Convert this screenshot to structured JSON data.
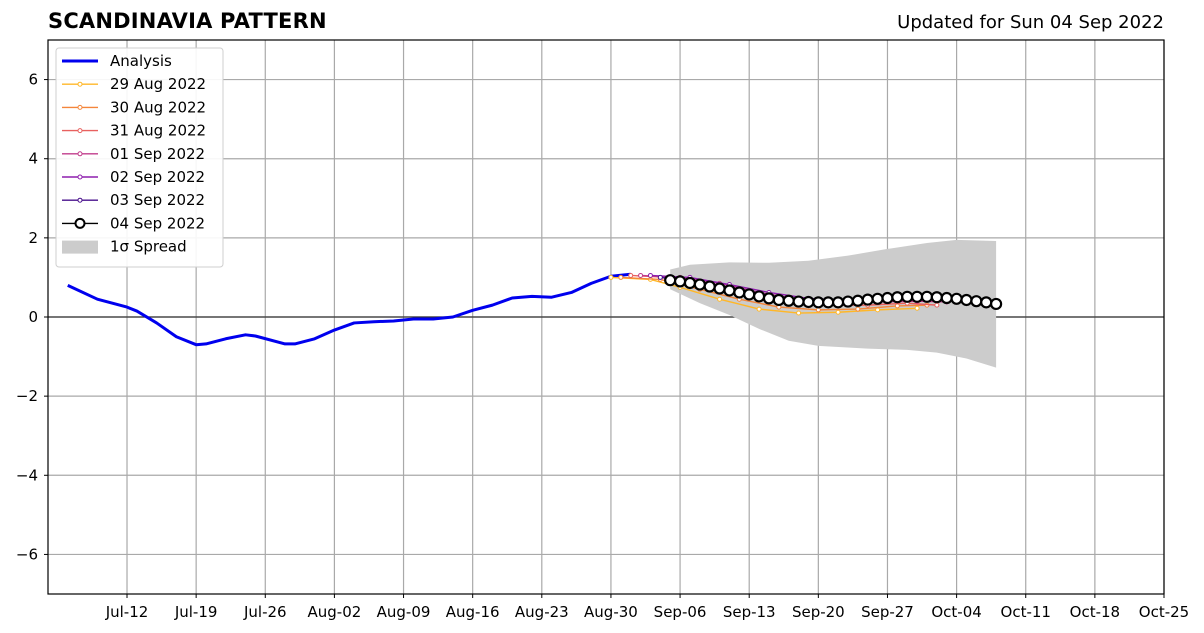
{
  "chart_data": {
    "type": "line",
    "title": "SCANDINAVIA PATTERN",
    "subtitle": "Updated for Sun 04 Sep 2022",
    "xlabel": "",
    "ylabel": "",
    "xlim": [
      "2022-07-04",
      "2022-10-25"
    ],
    "ylim": [
      -7,
      7
    ],
    "grid": true,
    "legend_position": "top-left",
    "x_ticks": [
      "2022-07-12",
      "2022-07-19",
      "2022-07-26",
      "2022-08-02",
      "2022-08-09",
      "2022-08-16",
      "2022-08-23",
      "2022-08-30",
      "2022-09-06",
      "2022-09-13",
      "2022-09-20",
      "2022-09-27",
      "2022-10-04",
      "2022-10-11",
      "2022-10-18",
      "2022-10-25"
    ],
    "x_tick_labels": [
      "Jul-12",
      "Jul-19",
      "Jul-26",
      "Aug-02",
      "Aug-09",
      "Aug-16",
      "Aug-23",
      "Aug-30",
      "Sep-06",
      "Sep-13",
      "Sep-20",
      "Sep-27",
      "Oct-04",
      "Oct-11",
      "Oct-18",
      "Oct-25"
    ],
    "y_ticks": [
      -6,
      -4,
      -2,
      0,
      2,
      4,
      6
    ],
    "y_tick_labels": [
      "−6",
      "−4",
      "−2",
      "0",
      "2",
      "4",
      "6"
    ],
    "series": [
      {
        "name": "Analysis",
        "color": "#0000ee",
        "points": [
          [
            "2022-07-06",
            0.8
          ],
          [
            "2022-07-09",
            0.45
          ],
          [
            "2022-07-12",
            0.25
          ],
          [
            "2022-07-13",
            0.15
          ],
          [
            "2022-07-15",
            -0.15
          ],
          [
            "2022-07-17",
            -0.5
          ],
          [
            "2022-07-19",
            -0.7
          ],
          [
            "2022-07-20",
            -0.68
          ],
          [
            "2022-07-22",
            -0.55
          ],
          [
            "2022-07-24",
            -0.45
          ],
          [
            "2022-07-25",
            -0.48
          ],
          [
            "2022-07-28",
            -0.68
          ],
          [
            "2022-07-29",
            -0.68
          ],
          [
            "2022-07-31",
            -0.55
          ],
          [
            "2022-08-02",
            -0.33
          ],
          [
            "2022-08-04",
            -0.15
          ],
          [
            "2022-08-06",
            -0.12
          ],
          [
            "2022-08-08",
            -0.1
          ],
          [
            "2022-08-10",
            -0.05
          ],
          [
            "2022-08-12",
            -0.05
          ],
          [
            "2022-08-14",
            0.0
          ],
          [
            "2022-08-16",
            0.17
          ],
          [
            "2022-08-18",
            0.3
          ],
          [
            "2022-08-20",
            0.48
          ],
          [
            "2022-08-22",
            0.52
          ],
          [
            "2022-08-24",
            0.5
          ],
          [
            "2022-08-26",
            0.62
          ],
          [
            "2022-08-28",
            0.85
          ],
          [
            "2022-08-30",
            1.03
          ],
          [
            "2022-09-01",
            1.08
          ]
        ]
      },
      {
        "name": "29 Aug 2022",
        "color": "#ffb728",
        "points": [
          [
            "2022-08-30",
            1.0
          ],
          [
            "2022-09-03",
            0.95
          ],
          [
            "2022-09-06",
            0.75
          ],
          [
            "2022-09-10",
            0.45
          ],
          [
            "2022-09-14",
            0.2
          ],
          [
            "2022-09-18",
            0.1
          ],
          [
            "2022-09-22",
            0.12
          ],
          [
            "2022-09-26",
            0.18
          ],
          [
            "2022-09-30",
            0.22
          ]
        ]
      },
      {
        "name": "30 Aug 2022",
        "color": "#f4863b",
        "points": [
          [
            "2022-08-31",
            1.0
          ],
          [
            "2022-09-04",
            0.95
          ],
          [
            "2022-09-08",
            0.7
          ],
          [
            "2022-09-12",
            0.45
          ],
          [
            "2022-09-16",
            0.25
          ],
          [
            "2022-09-20",
            0.18
          ],
          [
            "2022-09-24",
            0.2
          ],
          [
            "2022-09-28",
            0.28
          ],
          [
            "2022-10-01",
            0.3
          ]
        ]
      },
      {
        "name": "31 Aug 2022",
        "color": "#e8615f",
        "points": [
          [
            "2022-09-01",
            1.05
          ],
          [
            "2022-09-05",
            1.0
          ],
          [
            "2022-09-09",
            0.8
          ],
          [
            "2022-09-13",
            0.55
          ],
          [
            "2022-09-17",
            0.38
          ],
          [
            "2022-09-21",
            0.3
          ],
          [
            "2022-09-25",
            0.3
          ],
          [
            "2022-09-29",
            0.35
          ],
          [
            "2022-10-02",
            0.3
          ]
        ]
      },
      {
        "name": "01 Sep 2022",
        "color": "#c13c8b",
        "points": [
          [
            "2022-09-02",
            1.05
          ],
          [
            "2022-09-06",
            1.0
          ],
          [
            "2022-09-10",
            0.85
          ],
          [
            "2022-09-14",
            0.62
          ],
          [
            "2022-09-18",
            0.45
          ],
          [
            "2022-09-22",
            0.38
          ],
          [
            "2022-09-26",
            0.38
          ],
          [
            "2022-09-30",
            0.4
          ],
          [
            "2022-10-03",
            0.38
          ]
        ]
      },
      {
        "name": "02 Sep 2022",
        "color": "#8e1fad",
        "points": [
          [
            "2022-09-03",
            1.05
          ],
          [
            "2022-09-07",
            1.0
          ],
          [
            "2022-09-11",
            0.82
          ],
          [
            "2022-09-15",
            0.62
          ],
          [
            "2022-09-19",
            0.47
          ],
          [
            "2022-09-23",
            0.42
          ],
          [
            "2022-09-27",
            0.45
          ],
          [
            "2022-10-01",
            0.45
          ],
          [
            "2022-10-04",
            0.4
          ]
        ]
      },
      {
        "name": "03 Sep 2022",
        "color": "#48108c",
        "points": [
          [
            "2022-09-04",
            1.0
          ],
          [
            "2022-09-08",
            0.88
          ],
          [
            "2022-09-12",
            0.7
          ],
          [
            "2022-09-16",
            0.5
          ],
          [
            "2022-09-20",
            0.4
          ],
          [
            "2022-09-24",
            0.42
          ],
          [
            "2022-09-28",
            0.5
          ],
          [
            "2022-10-02",
            0.5
          ],
          [
            "2022-10-06",
            0.4
          ]
        ]
      },
      {
        "name": "04 Sep 2022",
        "color": "#000000",
        "points": [
          [
            "2022-09-05",
            0.93
          ],
          [
            "2022-09-06",
            0.9
          ],
          [
            "2022-09-07",
            0.86
          ],
          [
            "2022-09-08",
            0.82
          ],
          [
            "2022-09-09",
            0.77
          ],
          [
            "2022-09-10",
            0.72
          ],
          [
            "2022-09-11",
            0.67
          ],
          [
            "2022-09-12",
            0.62
          ],
          [
            "2022-09-13",
            0.57
          ],
          [
            "2022-09-14",
            0.52
          ],
          [
            "2022-09-15",
            0.47
          ],
          [
            "2022-09-16",
            0.43
          ],
          [
            "2022-09-17",
            0.41
          ],
          [
            "2022-09-18",
            0.39
          ],
          [
            "2022-09-19",
            0.38
          ],
          [
            "2022-09-20",
            0.37
          ],
          [
            "2022-09-21",
            0.37
          ],
          [
            "2022-09-22",
            0.37
          ],
          [
            "2022-09-23",
            0.39
          ],
          [
            "2022-09-24",
            0.41
          ],
          [
            "2022-09-25",
            0.44
          ],
          [
            "2022-09-26",
            0.46
          ],
          [
            "2022-09-27",
            0.48
          ],
          [
            "2022-09-28",
            0.5
          ],
          [
            "2022-09-29",
            0.51
          ],
          [
            "2022-09-30",
            0.51
          ],
          [
            "2022-10-01",
            0.51
          ],
          [
            "2022-10-02",
            0.5
          ],
          [
            "2022-10-03",
            0.48
          ],
          [
            "2022-10-04",
            0.46
          ],
          [
            "2022-10-05",
            0.43
          ],
          [
            "2022-10-06",
            0.4
          ],
          [
            "2022-10-07",
            0.37
          ],
          [
            "2022-10-08",
            0.33
          ]
        ]
      }
    ],
    "spread": {
      "name": "1σ Spread",
      "color": "#cccccc",
      "upper": [
        [
          "2022-09-05",
          1.2
        ],
        [
          "2022-09-07",
          1.32
        ],
        [
          "2022-09-11",
          1.38
        ],
        [
          "2022-09-15",
          1.37
        ],
        [
          "2022-09-19",
          1.42
        ],
        [
          "2022-09-23",
          1.55
        ],
        [
          "2022-09-27",
          1.72
        ],
        [
          "2022-10-01",
          1.87
        ],
        [
          "2022-10-04",
          1.95
        ],
        [
          "2022-10-08",
          1.92
        ]
      ],
      "lower": [
        [
          "2022-09-05",
          0.7
        ],
        [
          "2022-09-08",
          0.35
        ],
        [
          "2022-09-11",
          0.05
        ],
        [
          "2022-09-14",
          -0.3
        ],
        [
          "2022-09-17",
          -0.6
        ],
        [
          "2022-09-20",
          -0.73
        ],
        [
          "2022-09-25",
          -0.8
        ],
        [
          "2022-09-29",
          -0.83
        ],
        [
          "2022-10-02",
          -0.9
        ],
        [
          "2022-10-05",
          -1.05
        ],
        [
          "2022-10-08",
          -1.28
        ]
      ]
    }
  }
}
